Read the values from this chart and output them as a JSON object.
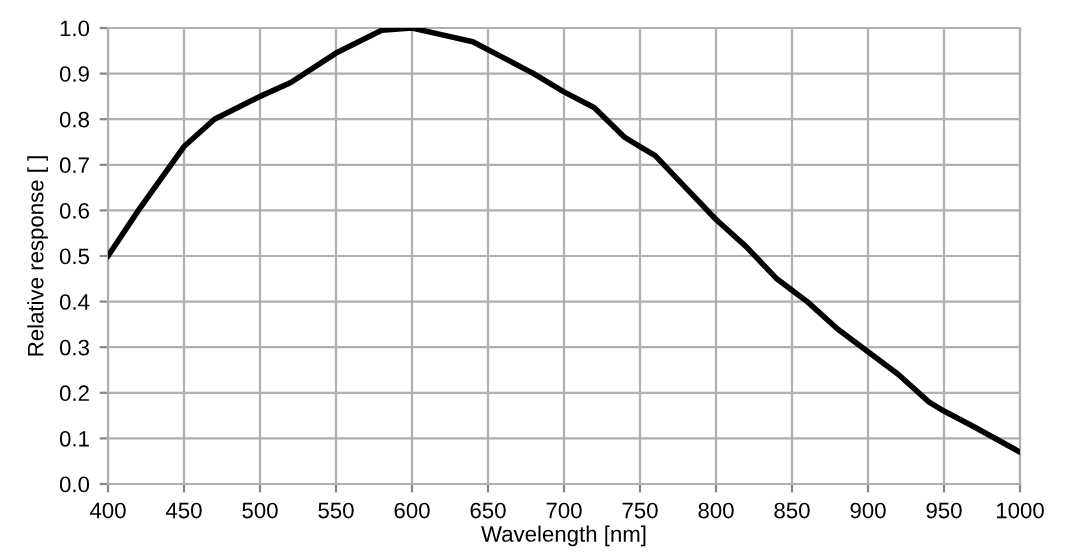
{
  "chart_data": {
    "type": "line",
    "xlabel": "Wavelength [nm]",
    "ylabel": "Relative response [ ]",
    "x": [
      400,
      420,
      450,
      470,
      500,
      520,
      550,
      580,
      600,
      620,
      640,
      660,
      680,
      700,
      720,
      740,
      750,
      760,
      780,
      800,
      820,
      840,
      850,
      860,
      880,
      900,
      920,
      940,
      950,
      970,
      1000
    ],
    "series": [
      {
        "color": "#000000",
        "values": [
          0.5,
          0.6,
          0.74,
          0.8,
          0.85,
          0.88,
          0.945,
          0.995,
          1.0,
          0.985,
          0.97,
          0.935,
          0.9,
          0.86,
          0.825,
          0.76,
          0.74,
          0.72,
          0.65,
          0.58,
          0.52,
          0.45,
          0.425,
          0.4,
          0.34,
          0.29,
          0.24,
          0.18,
          0.16,
          0.125,
          0.07
        ]
      }
    ],
    "xlim": [
      400,
      1000
    ],
    "ylim": [
      0,
      1
    ],
    "xticks": [
      400,
      450,
      500,
      550,
      600,
      650,
      700,
      750,
      800,
      850,
      900,
      950,
      1000
    ],
    "yticks": [
      {
        "value": 0,
        "label": "0.0"
      },
      0.1,
      0.2,
      0.3,
      0.4,
      0.5,
      0.6,
      0.7,
      0.8,
      0.9,
      {
        "value": 1,
        "label": "1.0"
      }
    ],
    "grid": true,
    "legend": false,
    "marker": "none",
    "line_style": "solid"
  }
}
